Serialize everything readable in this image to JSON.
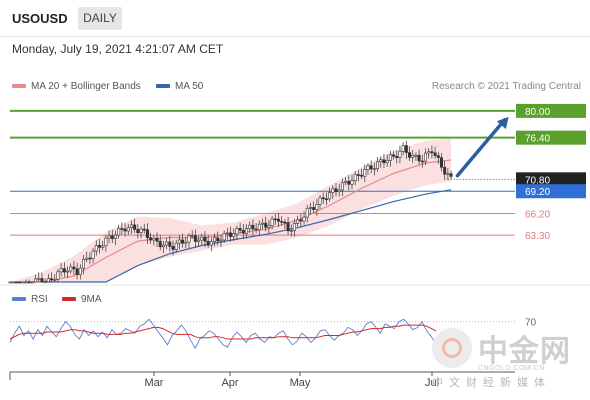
{
  "header": {
    "symbol": "USOUSD",
    "timeframe": "DAILY",
    "datetime": "Monday, July 19, 2021 4:21:07 AM CET"
  },
  "legend": {
    "ma20_label": "MA 20 + Bollinger Bands",
    "ma50_label": "MA 50",
    "research": "Research © 2021 Trading Central",
    "rsi_label": "RSI",
    "ma9_label": "9MA"
  },
  "colors": {
    "ma20": "#e58b8b",
    "ma50": "#3a66a8",
    "bollinger_fill": "#f8d6d6",
    "resistance": "#5aa02c",
    "support": "#e07a7a",
    "current_price": "#2f6fd6",
    "rsi": "#5a7fd0",
    "rsi_ma": "#d02a2a",
    "arrow": "#2c5f9e",
    "candle": "#333333"
  },
  "watermark": {
    "name": "中金网",
    "domain": "CNGOLD.COM.CN",
    "tagline": "中文财经新媒体"
  },
  "chart_data": {
    "type": "candlestick",
    "x_ticks": [
      "Mar",
      "Apr",
      "May",
      "Jul"
    ],
    "y_range": [
      57.0,
      82.0
    ],
    "price_levels": [
      {
        "label": "80.00",
        "value": 80.0,
        "kind": "resistance"
      },
      {
        "label": "76.40",
        "value": 76.4,
        "kind": "resistance"
      },
      {
        "label": "70.80",
        "value": 70.8,
        "kind": "last"
      },
      {
        "label": "69.20",
        "value": 69.2,
        "kind": "pivot"
      },
      {
        "label": "66.20",
        "value": 66.2,
        "kind": "support"
      },
      {
        "label": "63.30",
        "value": 63.3,
        "kind": "support"
      }
    ],
    "close_series": [
      {
        "x": 0,
        "y": 55.0
      },
      {
        "x": 3,
        "y": 55.5
      },
      {
        "x": 6,
        "y": 56.5
      },
      {
        "x": 9,
        "y": 57.3
      },
      {
        "x": 12,
        "y": 57.0
      },
      {
        "x": 15,
        "y": 58.2
      },
      {
        "x": 18,
        "y": 58.8
      },
      {
        "x": 21,
        "y": 58.4
      },
      {
        "x": 24,
        "y": 60.2
      },
      {
        "x": 27,
        "y": 61.5
      },
      {
        "x": 30,
        "y": 62.6
      },
      {
        "x": 33,
        "y": 63.5
      },
      {
        "x": 36,
        "y": 64.3
      },
      {
        "x": 39,
        "y": 64.2
      },
      {
        "x": 42,
        "y": 63.7
      },
      {
        "x": 45,
        "y": 62.5
      },
      {
        "x": 48,
        "y": 62.0
      },
      {
        "x": 51,
        "y": 61.8
      },
      {
        "x": 54,
        "y": 62.5
      },
      {
        "x": 57,
        "y": 63.0
      },
      {
        "x": 60,
        "y": 62.6
      },
      {
        "x": 63,
        "y": 62.3
      },
      {
        "x": 66,
        "y": 63.0
      },
      {
        "x": 69,
        "y": 63.5
      },
      {
        "x": 72,
        "y": 63.9
      },
      {
        "x": 75,
        "y": 64.2
      },
      {
        "x": 78,
        "y": 64.5
      },
      {
        "x": 81,
        "y": 64.8
      },
      {
        "x": 84,
        "y": 65.6
      },
      {
        "x": 87,
        "y": 64.0
      },
      {
        "x": 90,
        "y": 65.0
      },
      {
        "x": 93,
        "y": 66.5
      },
      {
        "x": 96,
        "y": 67.5
      },
      {
        "x": 99,
        "y": 68.6
      },
      {
        "x": 102,
        "y": 69.4
      },
      {
        "x": 105,
        "y": 70.3
      },
      {
        "x": 108,
        "y": 71.0
      },
      {
        "x": 111,
        "y": 72.0
      },
      {
        "x": 114,
        "y": 72.6
      },
      {
        "x": 117,
        "y": 73.4
      },
      {
        "x": 120,
        "y": 73.8
      },
      {
        "x": 123,
        "y": 74.9
      },
      {
        "x": 126,
        "y": 73.8
      },
      {
        "x": 129,
        "y": 73.5
      },
      {
        "x": 132,
        "y": 74.8
      },
      {
        "x": 135,
        "y": 72.5
      },
      {
        "x": 138,
        "y": 70.8
      }
    ],
    "ma20_series": [
      {
        "x": 0,
        "y": 54.0
      },
      {
        "x": 10,
        "y": 55.8
      },
      {
        "x": 20,
        "y": 57.8
      },
      {
        "x": 30,
        "y": 60.3
      },
      {
        "x": 40,
        "y": 62.5
      },
      {
        "x": 50,
        "y": 63.0
      },
      {
        "x": 60,
        "y": 62.9
      },
      {
        "x": 70,
        "y": 63.5
      },
      {
        "x": 80,
        "y": 64.1
      },
      {
        "x": 90,
        "y": 65.3
      },
      {
        "x": 100,
        "y": 67.3
      },
      {
        "x": 110,
        "y": 69.6
      },
      {
        "x": 120,
        "y": 71.6
      },
      {
        "x": 130,
        "y": 73.0
      },
      {
        "x": 138,
        "y": 73.4
      }
    ],
    "ma50_series": [
      {
        "x": 0,
        "y": 50.5
      },
      {
        "x": 10,
        "y": 52.5
      },
      {
        "x": 20,
        "y": 54.5
      },
      {
        "x": 30,
        "y": 57.0
      },
      {
        "x": 40,
        "y": 59.2
      },
      {
        "x": 50,
        "y": 60.8
      },
      {
        "x": 60,
        "y": 61.9
      },
      {
        "x": 70,
        "y": 62.7
      },
      {
        "x": 80,
        "y": 63.4
      },
      {
        "x": 90,
        "y": 64.3
      },
      {
        "x": 100,
        "y": 65.4
      },
      {
        "x": 110,
        "y": 66.6
      },
      {
        "x": 120,
        "y": 67.8
      },
      {
        "x": 130,
        "y": 68.8
      },
      {
        "x": 138,
        "y": 69.4
      }
    ],
    "bb_upper": [
      {
        "x": 0,
        "y": 57.0
      },
      {
        "x": 10,
        "y": 58.3
      },
      {
        "x": 20,
        "y": 60.5
      },
      {
        "x": 30,
        "y": 63.7
      },
      {
        "x": 40,
        "y": 65.8
      },
      {
        "x": 50,
        "y": 65.6
      },
      {
        "x": 60,
        "y": 64.6
      },
      {
        "x": 70,
        "y": 65.0
      },
      {
        "x": 80,
        "y": 66.2
      },
      {
        "x": 90,
        "y": 67.6
      },
      {
        "x": 100,
        "y": 70.0
      },
      {
        "x": 110,
        "y": 72.4
      },
      {
        "x": 120,
        "y": 74.6
      },
      {
        "x": 130,
        "y": 76.0
      },
      {
        "x": 138,
        "y": 76.3
      }
    ],
    "bb_lower": [
      {
        "x": 0,
        "y": 51.0
      },
      {
        "x": 10,
        "y": 53.3
      },
      {
        "x": 20,
        "y": 55.1
      },
      {
        "x": 30,
        "y": 56.9
      },
      {
        "x": 40,
        "y": 59.2
      },
      {
        "x": 50,
        "y": 60.4
      },
      {
        "x": 60,
        "y": 61.2
      },
      {
        "x": 70,
        "y": 62.0
      },
      {
        "x": 80,
        "y": 62.0
      },
      {
        "x": 90,
        "y": 63.0
      },
      {
        "x": 100,
        "y": 64.6
      },
      {
        "x": 110,
        "y": 66.8
      },
      {
        "x": 120,
        "y": 68.6
      },
      {
        "x": 130,
        "y": 70.0
      },
      {
        "x": 138,
        "y": 70.5
      }
    ],
    "projection": {
      "from": {
        "x": 140,
        "y": 71.3
      },
      "to": {
        "x": 156,
        "y": 80.0
      }
    },
    "rsi_level_label": "70",
    "rsi_level": 70,
    "rsi_range": [
      30,
      80
    ],
    "rsi_series": [
      52,
      60,
      66,
      58,
      62,
      55,
      63,
      58,
      66,
      61,
      57,
      64,
      70,
      66,
      59,
      55,
      63,
      58,
      62,
      57,
      61,
      56,
      63,
      59,
      60,
      64,
      62,
      60,
      66,
      68,
      72,
      67,
      61,
      56,
      50,
      58,
      62,
      67,
      62,
      54,
      47,
      55,
      58,
      62,
      60,
      55,
      50,
      48,
      56,
      61,
      57,
      52,
      58,
      60,
      55,
      52,
      57,
      56,
      60,
      62,
      55,
      50,
      53,
      60,
      57,
      52,
      56,
      62,
      63,
      58,
      54,
      58,
      60,
      65,
      63,
      58,
      62,
      68,
      70,
      65,
      60,
      68,
      66,
      64,
      70,
      72,
      68,
      63,
      65,
      70,
      62,
      57,
      50
    ],
    "rsi_ma_series": [
      55,
      57,
      59,
      60,
      60,
      60,
      60,
      60,
      61,
      61,
      61,
      61,
      62,
      63,
      63,
      62,
      62,
      61,
      60,
      60,
      60,
      59,
      59,
      59,
      59,
      60,
      60,
      61,
      62,
      63,
      64,
      65,
      65,
      64,
      62,
      60,
      59,
      59,
      59,
      59,
      57,
      56,
      56,
      56,
      57,
      57,
      56,
      55,
      55,
      55,
      55,
      55,
      55,
      56,
      56,
      56,
      56,
      56,
      57,
      57,
      57,
      56,
      56,
      56,
      56,
      56,
      56,
      57,
      58,
      58,
      58,
      58,
      59,
      60,
      61,
      61,
      62,
      63,
      64,
      64,
      64,
      65,
      65,
      66,
      66,
      67,
      67,
      67,
      67,
      67,
      66,
      64,
      62
    ]
  }
}
